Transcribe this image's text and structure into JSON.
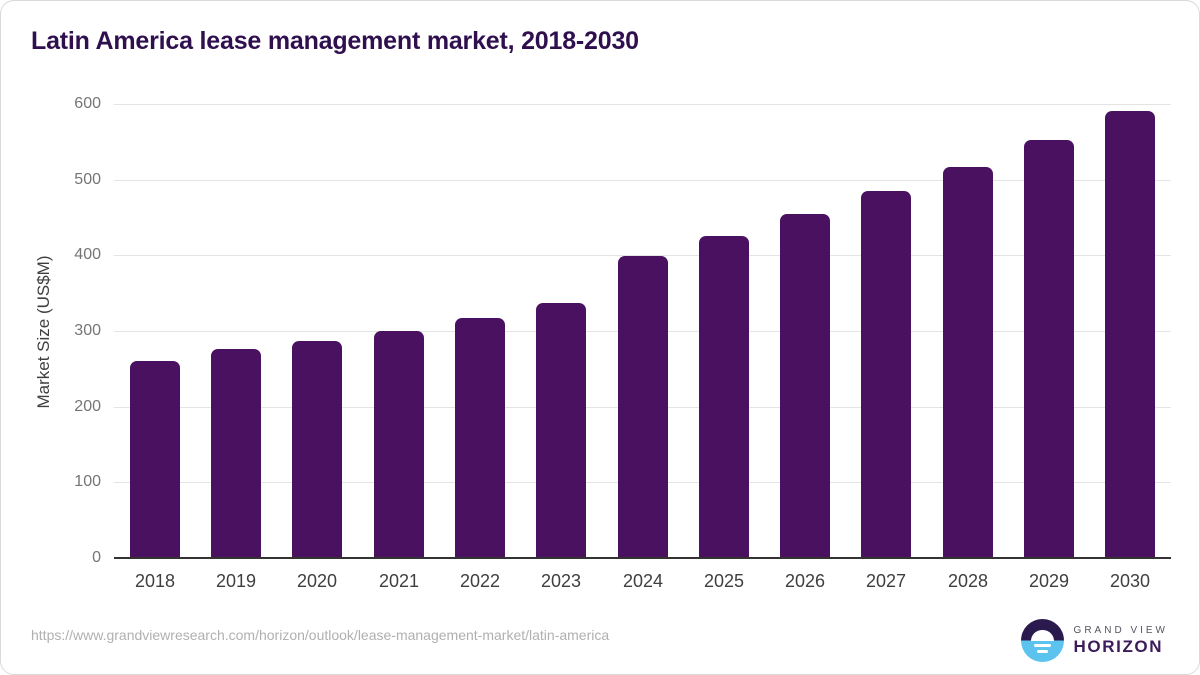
{
  "chart_data": {
    "type": "bar",
    "title": "Latin America lease management market, 2018-2030",
    "categories": [
      "2018",
      "2019",
      "2020",
      "2021",
      "2022",
      "2023",
      "2024",
      "2025",
      "2026",
      "2027",
      "2028",
      "2029",
      "2030"
    ],
    "values": [
      260,
      276,
      287,
      300,
      317,
      337,
      399,
      425,
      454,
      485,
      517,
      553,
      591
    ],
    "xlabel": "",
    "ylabel": "Market Size (US$M)",
    "ylim": [
      0,
      600
    ],
    "ytick_interval": 100,
    "yticks": [
      0,
      100,
      200,
      300,
      400,
      500,
      600
    ],
    "grid": "horizontal",
    "legend": "none",
    "bar_color": "#4a1160"
  },
  "theme": {
    "title_color": "#2f0f4e",
    "tick_color": "#757575",
    "axis_label_color": "#3f3f3f",
    "gridline_color": "#e4e4e4",
    "axis_line_color": "#333333",
    "background": "#ffffff",
    "logo_navy": "#2b1a4e",
    "logo_blue": "#5cc3ef"
  },
  "footer": {
    "source_url": "https://www.grandviewresearch.com/horizon/outlook/lease-management-market/latin-america",
    "brand_top": "GRAND VIEW",
    "brand_bottom": "HORIZON"
  }
}
